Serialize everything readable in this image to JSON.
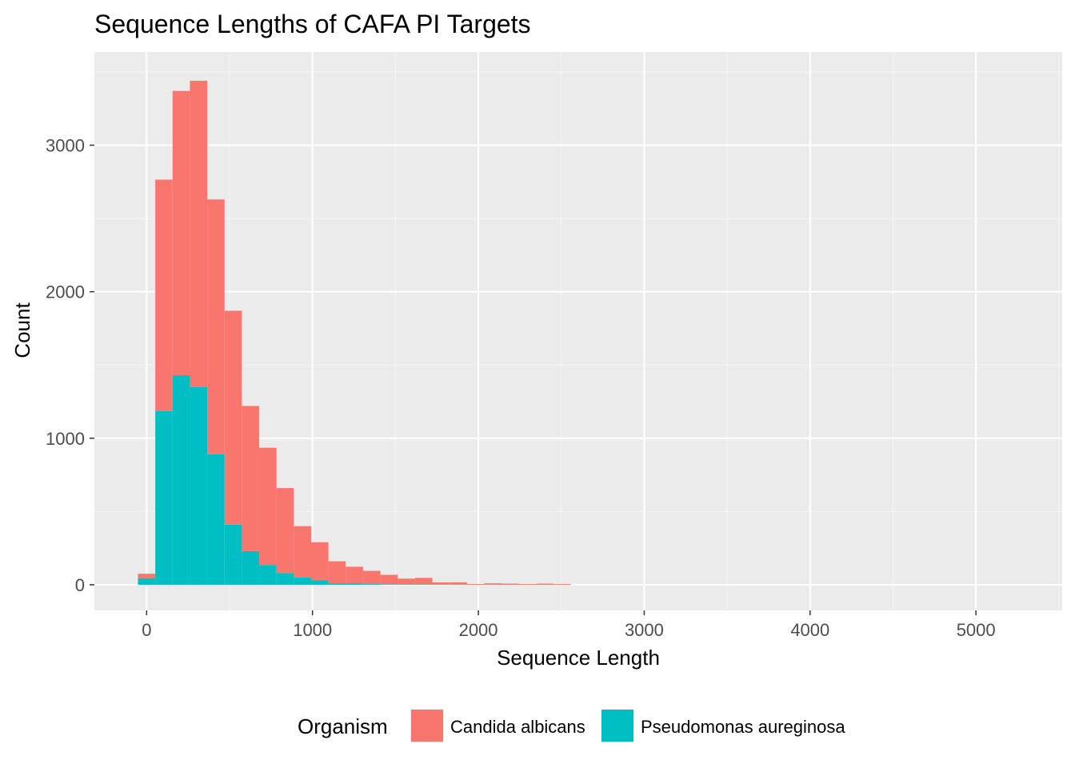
{
  "chart_data": {
    "type": "histogram",
    "stacked": true,
    "title": "Sequence Lengths of CAFA PI Targets",
    "xlabel": "Sequence Length",
    "ylabel": "Count",
    "xlim": [
      -315,
      5520
    ],
    "ylim": [
      -175,
      3636
    ],
    "x_ticks": [
      0,
      1000,
      2000,
      3000,
      4000,
      5000
    ],
    "x_tick_labels": [
      "0",
      "1000",
      "2000",
      "3000",
      "4000",
      "5000"
    ],
    "y_ticks": [
      0,
      1000,
      2000,
      3000
    ],
    "y_tick_labels": [
      "0",
      "1000",
      "2000",
      "3000"
    ],
    "grid": true,
    "legend_position": "bottom",
    "legend_title": "Organism",
    "bin_width": 104.4,
    "bin_centers": [
      0,
      104.4,
      208.8,
      313.2,
      417.6,
      522,
      626.4,
      730.8,
      835.2,
      939.6,
      1044,
      1148.4,
      1252.8,
      1357.2,
      1461.6,
      1566,
      1670.4,
      1774.8,
      1879.2,
      1983.6,
      2088,
      2192.4,
      2296.8,
      2401.2,
      2505.6
    ],
    "series": [
      {
        "name": "Candida albicans",
        "color": "#F8766D",
        "values": [
          30,
          1580,
          1940,
          2090,
          1740,
          1460,
          990,
          800,
          580,
          350,
          260,
          150,
          115,
          90,
          65,
          40,
          45,
          15,
          15,
          5,
          10,
          8,
          5,
          8,
          5
        ]
      },
      {
        "name": "Pseudomonas aureginosa",
        "color": "#00BFC4",
        "values": [
          45,
          1185,
          1430,
          1350,
          890,
          410,
          230,
          135,
          80,
          50,
          30,
          10,
          8,
          5,
          3,
          2,
          2,
          1,
          1,
          0,
          0,
          0,
          0,
          0,
          0
        ]
      }
    ]
  }
}
